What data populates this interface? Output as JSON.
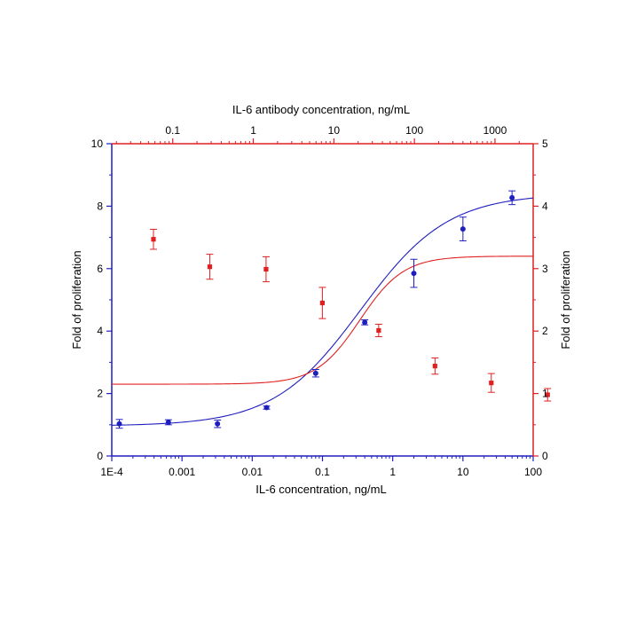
{
  "chart_data": {
    "type": "scatter",
    "title": "",
    "xlabel_bottom": "IL-6 concentration, ng/mL",
    "xlabel_top": "IL-6 antibody concentration, ng/mL",
    "ylabel_left": "Fold of proliferation",
    "ylabel_right": "Fold of proliferation",
    "x_bottom": {
      "scale": "log",
      "range": [
        0.0001,
        100
      ],
      "ticks": [
        0.0001,
        0.001,
        0.01,
        0.1,
        1,
        10,
        100
      ],
      "tick_labels": [
        "1E-4",
        "0.001",
        "0.01",
        "0.1",
        "1",
        "10",
        "100"
      ]
    },
    "x_top": {
      "scale": "log",
      "range": [
        0.0175,
        2980
      ],
      "ticks": [
        0.1,
        1,
        10,
        100,
        1000
      ],
      "tick_labels": [
        "0.1",
        "1",
        "10",
        "100",
        "1000"
      ]
    },
    "y_left": {
      "range": [
        0,
        10
      ],
      "ticks": [
        0,
        2,
        4,
        6,
        8,
        10
      ],
      "tick_labels": [
        "0",
        "2",
        "4",
        "6",
        "8",
        "10"
      ]
    },
    "y_right": {
      "range": [
        0,
        5
      ],
      "ticks": [
        0,
        1,
        2,
        3,
        4,
        5
      ],
      "tick_labels": [
        "0",
        "1",
        "2",
        "3",
        "4",
        "5"
      ]
    },
    "colors": {
      "il6": "#1f1fbf",
      "antibody": "#e02020"
    },
    "series": [
      {
        "name": "IL-6",
        "axis": "bottom-left",
        "marker": "circle",
        "x": [
          0.000128,
          0.00064,
          0.0032,
          0.016,
          0.08,
          0.4,
          2,
          10,
          50
        ],
        "y": [
          1.03,
          1.08,
          1.03,
          1.55,
          2.65,
          4.28,
          5.85,
          7.27,
          8.27
        ],
        "err": [
          0.14,
          0.08,
          0.12,
          0.05,
          0.12,
          0.08,
          0.45,
          0.38,
          0.22
        ],
        "fit": {
          "bottom": 0.96,
          "top": 8.4,
          "ec50": 0.35,
          "hill": 0.7
        }
      },
      {
        "name": "IL-6 antibody",
        "axis": "top-right",
        "marker": "square",
        "x": [
          0.0576,
          0.288,
          1.44,
          7.2,
          36,
          180,
          900,
          4500
        ],
        "y": [
          3.47,
          3.03,
          2.99,
          2.45,
          2.01,
          1.44,
          1.17,
          0.98
        ],
        "err": [
          0.16,
          0.2,
          0.2,
          0.25,
          0.1,
          0.13,
          0.15,
          0.1
        ],
        "fit": {
          "bottom": 1.15,
          "top": 3.2,
          "ec50": 21,
          "hill": 1.6
        }
      }
    ]
  }
}
